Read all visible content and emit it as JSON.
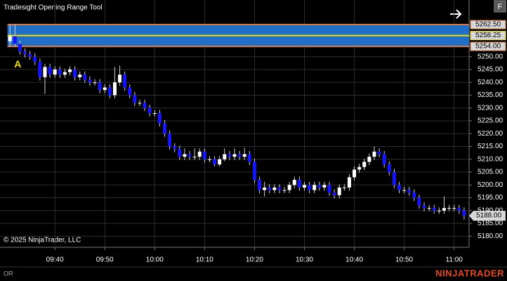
{
  "chart_data": {
    "type": "candlestick",
    "title": "Tradesight Opening Range Tool",
    "copyright": "© 2025 NinjaTrader, LLC",
    "status": "OR",
    "brand": "NINJATRADER",
    "button": "F",
    "marker_label": "A",
    "x": [
      "09:31",
      "09:32",
      "09:33",
      "09:34",
      "09:35",
      "09:36",
      "09:37",
      "09:38",
      "09:39",
      "09:40",
      "09:41",
      "09:42",
      "09:43",
      "09:44",
      "09:45",
      "09:46",
      "09:47",
      "09:48",
      "09:49",
      "09:50",
      "09:51",
      "09:52",
      "09:53",
      "09:54",
      "09:55",
      "09:56",
      "09:57",
      "09:58",
      "09:59",
      "10:00",
      "10:01",
      "10:02",
      "10:03",
      "10:04",
      "10:05",
      "10:06",
      "10:07",
      "10:08",
      "10:09",
      "10:10",
      "10:11",
      "10:12",
      "10:13",
      "10:14",
      "10:15",
      "10:16",
      "10:17",
      "10:18",
      "10:19",
      "10:20",
      "10:21",
      "10:22",
      "10:23",
      "10:24",
      "10:25",
      "10:26",
      "10:27",
      "10:28",
      "10:29",
      "10:30",
      "10:31",
      "10:32",
      "10:33",
      "10:34",
      "10:35",
      "10:36",
      "10:37",
      "10:38",
      "10:39",
      "10:40",
      "10:41",
      "10:42",
      "10:43",
      "10:44",
      "10:45",
      "10:46",
      "10:47",
      "10:48",
      "10:49",
      "10:50",
      "10:51",
      "10:52",
      "10:53",
      "10:54",
      "10:55",
      "10:56",
      "10:57",
      "10:58",
      "10:59",
      "11:00",
      "11:01",
      "11:02"
    ],
    "open": [
      5256,
      5258,
      5255,
      5252,
      5251,
      5250,
      5248,
      5242,
      5246,
      5243,
      5245,
      5243,
      5244,
      5245,
      5242,
      5243,
      5241,
      5240,
      5240,
      5237,
      5238,
      5235,
      5240,
      5243,
      5238,
      5235,
      5232,
      5232,
      5230,
      5228,
      5228,
      5224,
      5220,
      5215,
      5214,
      5211,
      5212,
      5211,
      5211,
      5213,
      5210,
      5210,
      5208,
      5210,
      5212,
      5211,
      5212,
      5211,
      5212,
      5209,
      5202,
      5198,
      5199,
      5198,
      5199,
      5198,
      5198,
      5200,
      5202,
      5199,
      5200,
      5198,
      5200,
      5199,
      5200,
      5197,
      5196,
      5199,
      5199,
      5203,
      5206,
      5207,
      5209,
      5211,
      5213,
      5212,
      5208,
      5205,
      5200,
      5198,
      5198,
      5197,
      5195,
      5192,
      5191,
      5191,
      5190,
      5190,
      5191,
      5191,
      5191,
      5190
    ],
    "high": [
      5262.5,
      5262.5,
      5256.25,
      5253.25,
      5252.25,
      5251.25,
      5249.25,
      5247.25,
      5247.25,
      5246.25,
      5246.25,
      5245.25,
      5246.25,
      5246.25,
      5244.25,
      5244.25,
      5242.25,
      5241.25,
      5241.25,
      5239.25,
      5239.25,
      5246,
      5246.5,
      5244.25,
      5239.25,
      5236.25,
      5233.25,
      5233.25,
      5231.25,
      5229.25,
      5229.25,
      5225.25,
      5221.25,
      5216.25,
      5215.25,
      5214.25,
      5213.25,
      5214.25,
      5214.25,
      5214.25,
      5211.25,
      5211.25,
      5211.25,
      5214.25,
      5213.25,
      5214.25,
      5213.25,
      5214.5,
      5213.25,
      5210.25,
      5203.25,
      5201.25,
      5200.25,
      5200.25,
      5200.25,
      5199.25,
      5201.25,
      5203.25,
      5203.25,
      5201.25,
      5201.25,
      5201.25,
      5201.25,
      5201.25,
      5201.25,
      5198.25,
      5200.25,
      5200.25,
      5204.25,
      5207.25,
      5208.25,
      5210.25,
      5212.25,
      5215,
      5214.25,
      5213.25,
      5209.25,
      5206.25,
      5201.25,
      5199.25,
      5199.25,
      5198.25,
      5196.25,
      5193.25,
      5192.25,
      5192.25,
      5191.25,
      5195.5,
      5192.25,
      5192.25,
      5192.25,
      5191.25
    ],
    "low": [
      5254,
      5253.75,
      5250.75,
      5249.75,
      5248.75,
      5246.75,
      5240.75,
      5235.5,
      5241.75,
      5241.75,
      5241.75,
      5241.75,
      5242.75,
      5240.75,
      5240.75,
      5239.75,
      5238.75,
      5238.75,
      5235.75,
      5235.75,
      5233.75,
      5233.75,
      5238.75,
      5236.75,
      5233.75,
      5230.75,
      5230.75,
      5228.75,
      5226.75,
      5226.75,
      5222.75,
      5218.75,
      5213.75,
      5212.75,
      5209.75,
      5209.75,
      5209.75,
      5209.75,
      5209.75,
      5208.75,
      5208.75,
      5207.25,
      5207.25,
      5209.25,
      5209.75,
      5209.75,
      5209.75,
      5209.75,
      5207.75,
      5200.75,
      5196.75,
      5195.5,
      5196.75,
      5196.75,
      5196.75,
      5196.75,
      5196.75,
      5198.75,
      5197.75,
      5197.75,
      5196.75,
      5196.75,
      5197.75,
      5197.75,
      5195.75,
      5194.75,
      5194.75,
      5197.75,
      5197.75,
      5201.75,
      5204.75,
      5205.75,
      5207.75,
      5209.75,
      5210.75,
      5206.75,
      5203.75,
      5198.75,
      5196.75,
      5196.75,
      5195.75,
      5193.75,
      5190.75,
      5189.75,
      5189.75,
      5188.75,
      5188.75,
      5188.75,
      5189.75,
      5189.75,
      5188.75,
      5186.5
    ],
    "close": [
      5258,
      5255,
      5252,
      5251,
      5250,
      5248,
      5242,
      5246,
      5243,
      5245,
      5243,
      5244,
      5245,
      5242,
      5243,
      5241,
      5240,
      5240,
      5237,
      5238,
      5235,
      5240,
      5243,
      5238,
      5235,
      5232,
      5232,
      5230,
      5228,
      5228,
      5224,
      5220,
      5215,
      5214,
      5211,
      5212,
      5211,
      5211,
      5213,
      5210,
      5210,
      5208,
      5210,
      5212,
      5211,
      5212,
      5211,
      5212,
      5209,
      5202,
      5198,
      5199,
      5198,
      5199,
      5198,
      5198,
      5200,
      5202,
      5199,
      5200,
      5198,
      5200,
      5199,
      5200,
      5197,
      5196,
      5199,
      5199,
      5203,
      5206,
      5207,
      5209,
      5211,
      5213,
      5212,
      5208,
      5205,
      5200,
      5198,
      5198,
      5197,
      5195,
      5192,
      5191,
      5191,
      5190,
      5190,
      5191,
      5191,
      5191,
      5190,
      5188
    ],
    "up_color": "#ffffff",
    "down_color": "#1414ff",
    "wick_color": "#d0d0d0",
    "xlim": [
      "09:29",
      "11:03"
    ],
    "xticks": [
      "09:40",
      "09:50",
      "10:00",
      "10:10",
      "10:20",
      "10:30",
      "10:40",
      "10:50",
      "11:00"
    ],
    "ylim": [
      5175.7,
      5272.1
    ],
    "yticks": [
      {
        "value": 5180,
        "label": "5180.00"
      },
      {
        "value": 5185,
        "label": "5185.00"
      },
      {
        "value": 5190,
        "label": "5190.00"
      },
      {
        "value": 5195,
        "label": "5195.00"
      },
      {
        "value": 5200,
        "label": "5200.00"
      },
      {
        "value": 5205,
        "label": "5205.00"
      },
      {
        "value": 5210,
        "label": "5210.00"
      },
      {
        "value": 5215,
        "label": "5215.00"
      },
      {
        "value": 5220,
        "label": "5220.00"
      },
      {
        "value": 5225,
        "label": "5225.00"
      },
      {
        "value": 5230,
        "label": "5230.00"
      },
      {
        "value": 5235,
        "label": "5235.00"
      },
      {
        "value": 5240,
        "label": "5240.00"
      },
      {
        "value": 5245,
        "label": "5245.00"
      },
      {
        "value": 5250,
        "label": "5250.00"
      }
    ],
    "grid": true,
    "or_start": "09:31",
    "or_fill": "#1f6fc8",
    "or_levels": [
      {
        "value": 5262.5,
        "label": "5262.50",
        "color": "#e07a3a"
      },
      {
        "value": 5258.25,
        "label": "5258.25",
        "color": "#f0e000"
      },
      {
        "value": 5254,
        "label": "5254.00",
        "color": "#e07a3a"
      }
    ],
    "last_price": {
      "value": 5188,
      "label": "5188.00"
    }
  }
}
